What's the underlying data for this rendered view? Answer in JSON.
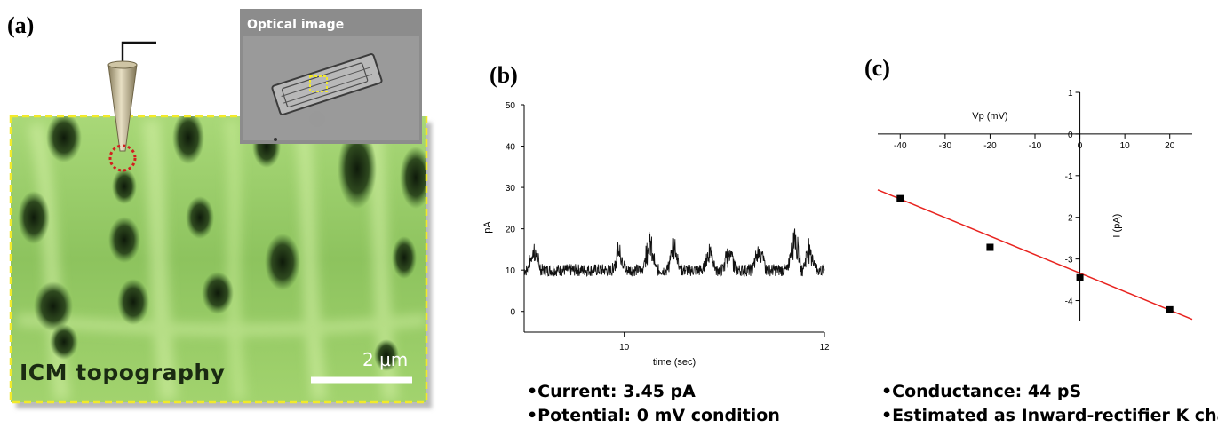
{
  "panels": {
    "a": {
      "label": "(a)",
      "inset_title": "Optical image",
      "topography_label": "ICM topography",
      "scalebar_label": "2 µm"
    },
    "b": {
      "label": "(b)",
      "bullets": [
        "•Current: 3.45 pA",
        "•Potential: 0 mV condition"
      ]
    },
    "c": {
      "label": "(c)",
      "bullets": [
        "•Conductance: 44 pS",
        "•Estimated as Inward-rectifier K channel"
      ]
    }
  },
  "chart_data": [
    {
      "type": "line",
      "panel": "b",
      "xlabel": "time (sec)",
      "ylabel": "pA",
      "xlim": [
        9,
        12
      ],
      "ylim": [
        -5,
        50
      ],
      "xticks": [
        10,
        12
      ],
      "yticks": [
        0,
        10,
        20,
        30,
        40,
        50
      ],
      "grid": false,
      "baseline_pA": 10,
      "bursts": [
        {
          "x": 9.1,
          "y": 16
        },
        {
          "x": 9.95,
          "y": 16
        },
        {
          "x": 10.25,
          "y": 19
        },
        {
          "x": 10.5,
          "y": 17
        },
        {
          "x": 10.85,
          "y": 16
        },
        {
          "x": 11.05,
          "y": 16
        },
        {
          "x": 11.35,
          "y": 17
        },
        {
          "x": 11.7,
          "y": 21
        },
        {
          "x": 11.85,
          "y": 17
        }
      ]
    },
    {
      "type": "scatter",
      "panel": "c",
      "xlabel": "Vp (mV)",
      "ylabel": "I (pA)",
      "xlim": [
        -45,
        25
      ],
      "ylim": [
        -4.5,
        1
      ],
      "xticks": [
        -40,
        -30,
        -20,
        -10,
        0,
        10,
        20
      ],
      "yticks": [
        1,
        0,
        -1,
        -2,
        -3,
        -4
      ],
      "grid": false,
      "points": [
        {
          "x": -40,
          "y": -1.55
        },
        {
          "x": -20,
          "y": -2.72
        },
        {
          "x": 0,
          "y": -3.45
        },
        {
          "x": 20,
          "y": -4.22
        }
      ],
      "fit_line": {
        "x1": -45,
        "y1": -1.34,
        "x2": 25,
        "y2": -4.45
      },
      "fit_color": "#e8231f"
    }
  ]
}
